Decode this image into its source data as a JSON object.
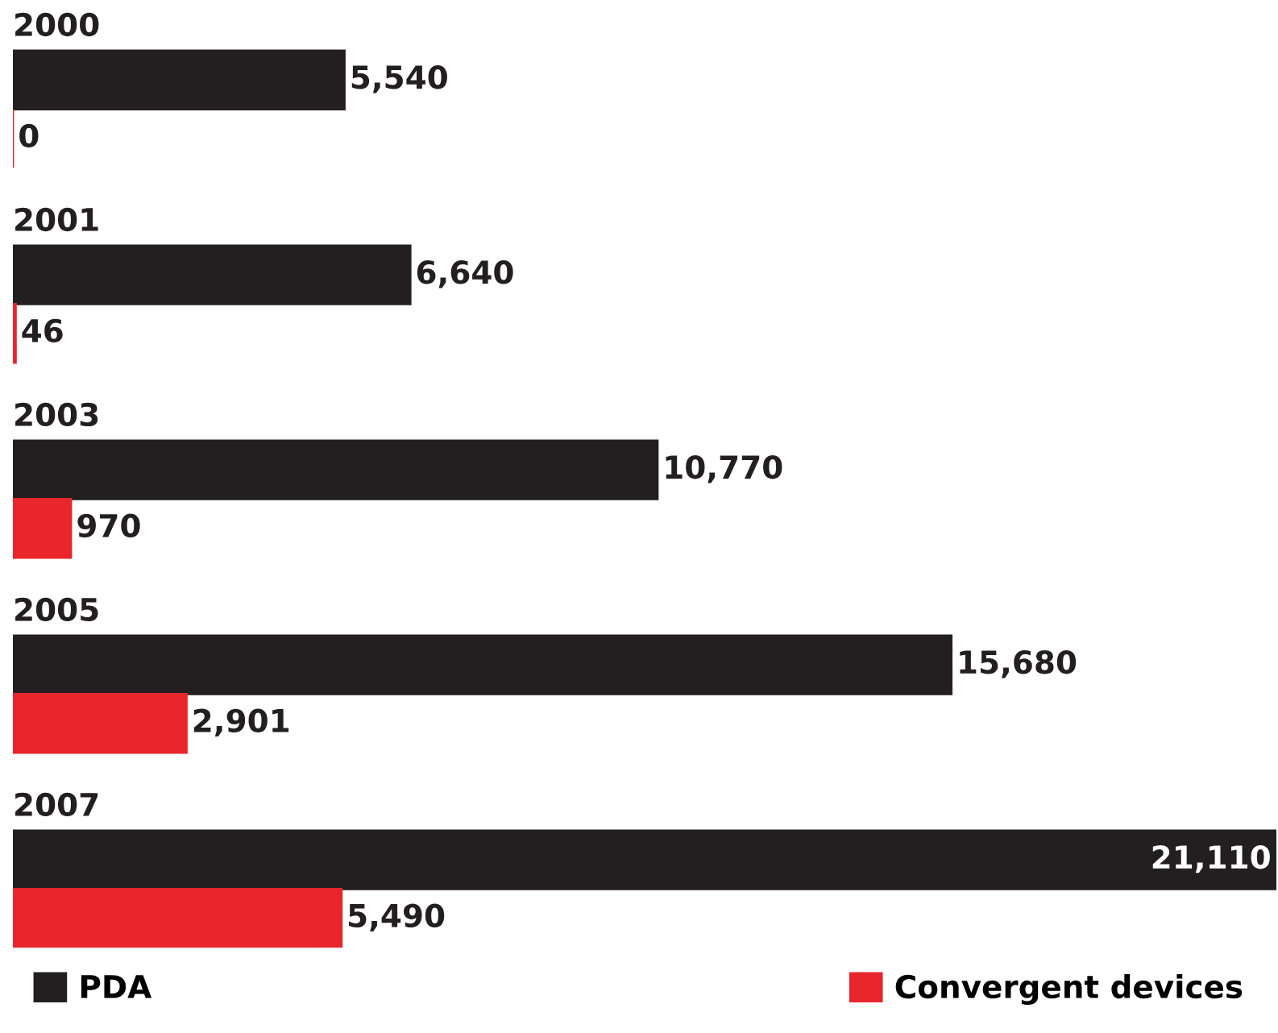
{
  "chart_data": {
    "type": "bar",
    "orientation": "horizontal",
    "categories": [
      "2000",
      "2001",
      "2003",
      "2005",
      "2007"
    ],
    "series": [
      {
        "name": "PDA",
        "color": "#231f20",
        "values": [
          5540,
          6640,
          10770,
          15680,
          21110
        ],
        "value_labels": [
          "5,540",
          "6,640",
          "10,770",
          "15,680",
          "21,110"
        ]
      },
      {
        "name": "Convergent devices",
        "color": "#e8262b",
        "values": [
          0,
          46,
          970,
          2901,
          5490
        ],
        "value_labels": [
          "0",
          "46",
          "970",
          "2,901",
          "5,490"
        ]
      }
    ],
    "legend": "bottom"
  }
}
